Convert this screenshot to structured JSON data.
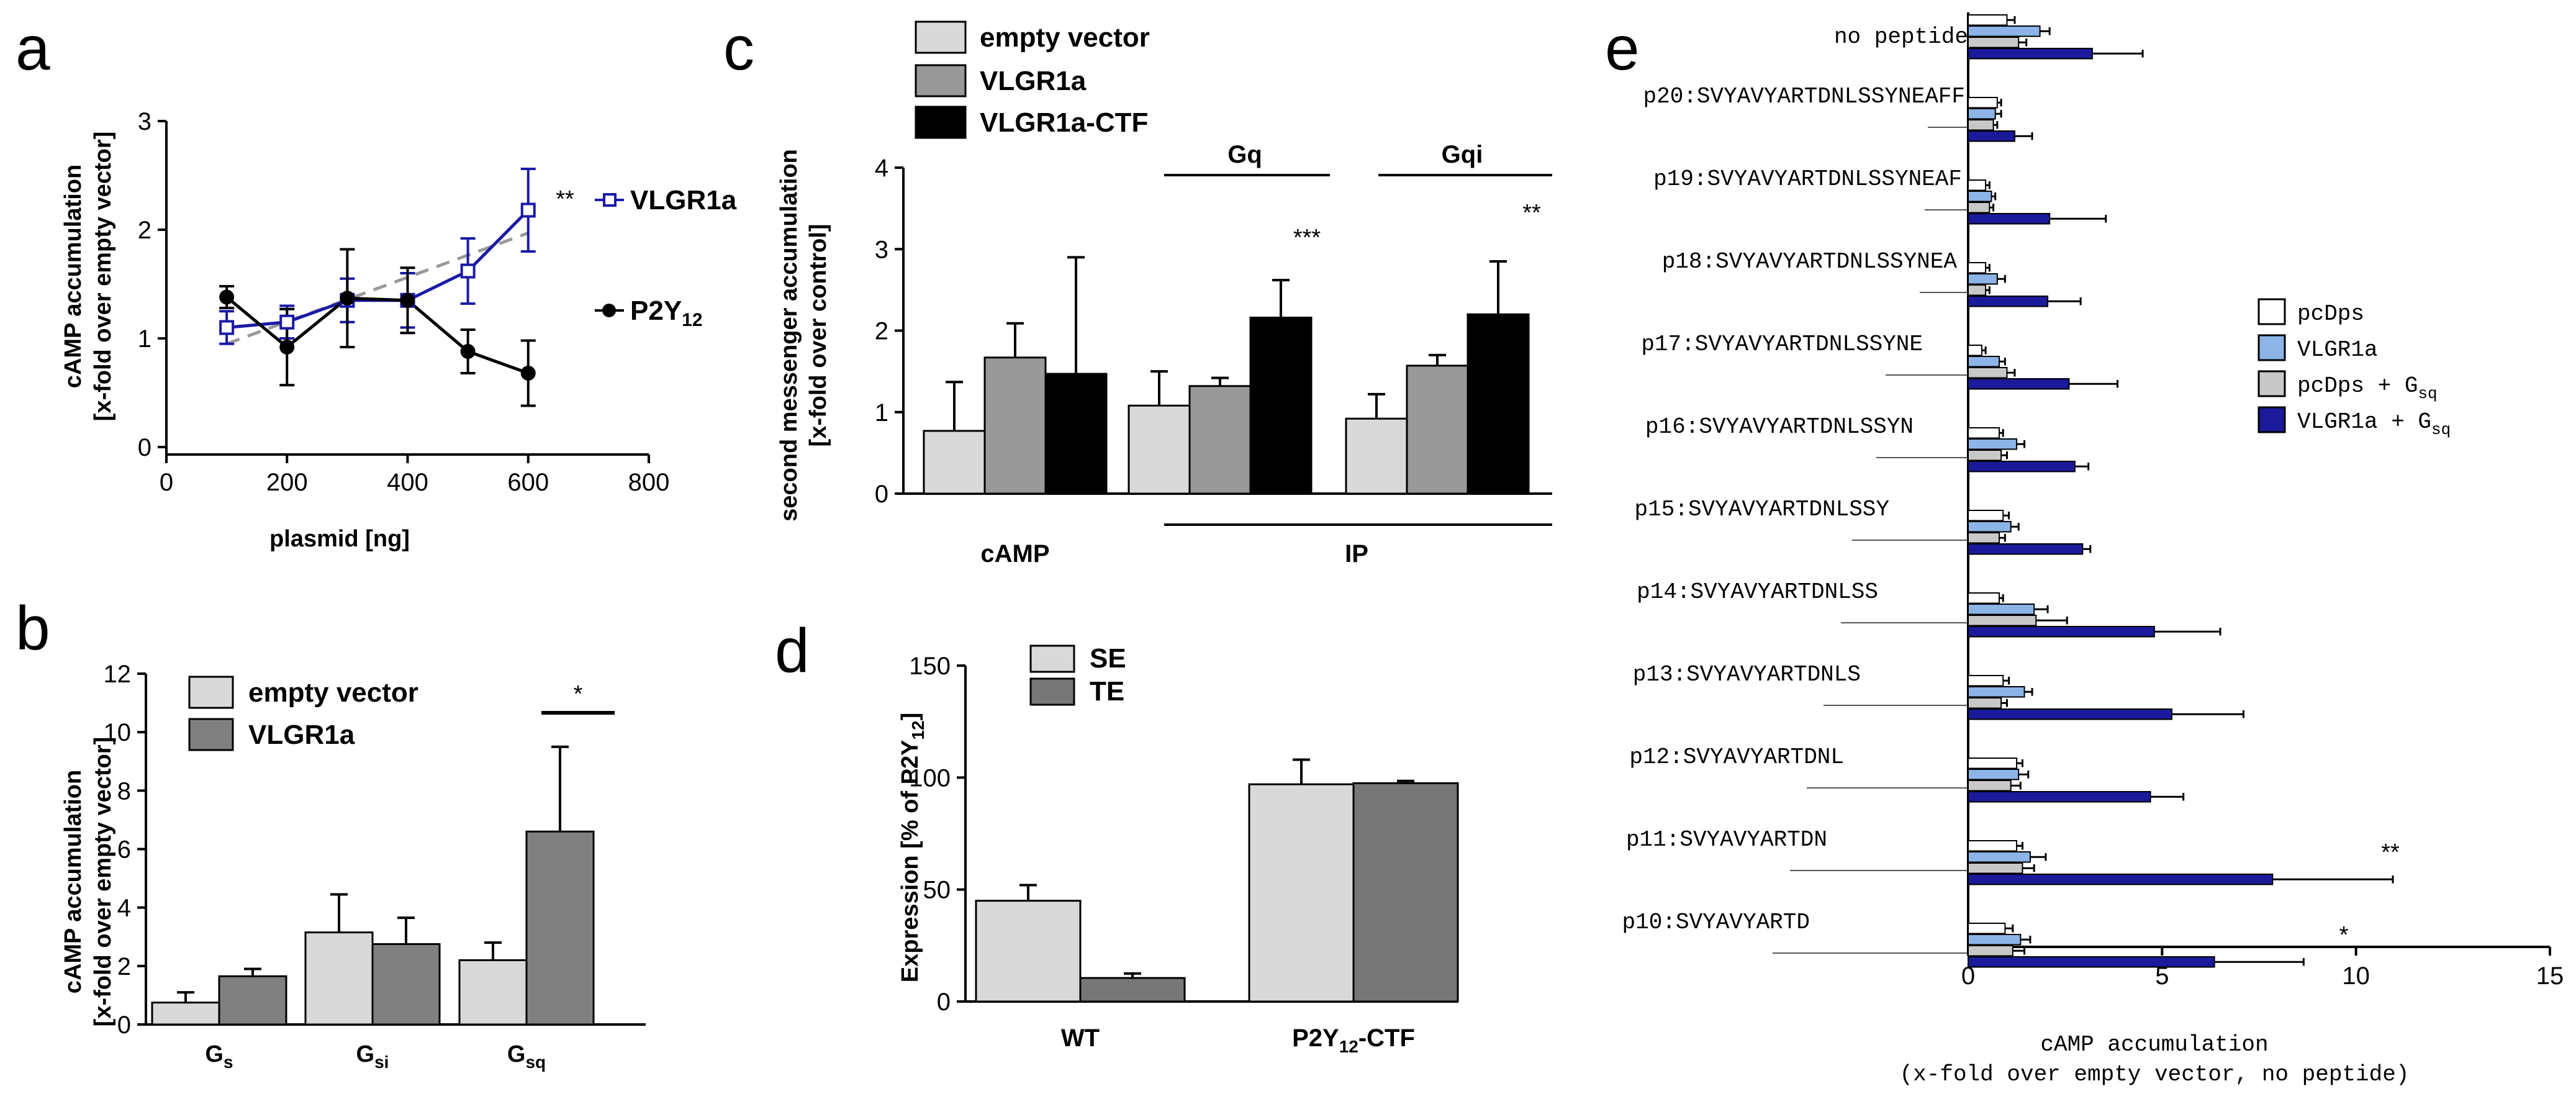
{
  "panel_letters": [
    "a",
    "b",
    "c",
    "d",
    "e"
  ],
  "chart_data": [
    {
      "panel": "a",
      "type": "line",
      "title": "",
      "xlabel": "plasmid [ng]",
      "ylabel": "cAMP accumulation",
      "ylabel2": "[x-fold over empty vector]",
      "xlim": [
        0,
        800
      ],
      "ylim": [
        0,
        3
      ],
      "xticks": [
        "0",
        "200",
        "400",
        "600",
        "800"
      ],
      "yticks": [
        "0",
        "1",
        "2",
        "3"
      ],
      "series": [
        {
          "name": "VLGR1a",
          "color": "#1a1aa6",
          "marker": "open-square",
          "x": [
            100,
            200,
            300,
            400,
            500,
            600
          ],
          "y": [
            1.1,
            1.15,
            1.35,
            1.35,
            1.62,
            2.18
          ],
          "err": [
            0.15,
            0.15,
            0.2,
            0.25,
            0.3,
            0.38
          ]
        },
        {
          "name": "P2Y12",
          "color": "#000000",
          "marker": "filled-circle",
          "x": [
            100,
            200,
            300,
            400,
            500,
            600
          ],
          "y": [
            1.38,
            0.92,
            1.37,
            1.35,
            0.88,
            0.68
          ],
          "err": [
            0.1,
            0.35,
            0.45,
            0.3,
            0.2,
            0.3
          ]
        }
      ],
      "trendline": {
        "x": [
          100,
          600
        ],
        "y": [
          0.95,
          1.97
        ],
        "color": "#999999",
        "style": "dashed"
      },
      "annotations": [
        "**"
      ]
    },
    {
      "panel": "b",
      "type": "bar",
      "xlabel": "",
      "ylabel": "cAMP accumulation",
      "ylabel2": "[x-fold over empty vector]",
      "ylim": [
        0,
        12
      ],
      "yticks": [
        "0",
        "2",
        "4",
        "6",
        "8",
        "10",
        "12"
      ],
      "categories": [
        "Gs",
        "Gsi",
        "Gsq"
      ],
      "category_subscripts": [
        "s",
        "si",
        "sq"
      ],
      "series": [
        {
          "name": "empty vector",
          "color": "#d9d9d9",
          "values": [
            0.75,
            3.15,
            2.2
          ],
          "err": [
            0.35,
            1.3,
            0.6
          ]
        },
        {
          "name": "VLGR1a",
          "color": "#808080",
          "values": [
            1.65,
            2.75,
            6.6
          ],
          "err": [
            0.25,
            0.9,
            2.9
          ]
        }
      ],
      "annotations": [
        "*"
      ]
    },
    {
      "panel": "c",
      "type": "bar",
      "ylabel": "second messenger accumulation",
      "ylabel2": "[x-fold over control]",
      "ylim": [
        0,
        4
      ],
      "yticks": [
        "0",
        "1",
        "2",
        "3",
        "4"
      ],
      "categories": [
        "cAMP",
        "IP Gq",
        "IP Gqi"
      ],
      "group_labels": {
        "camp": "cAMP",
        "ip": "IP",
        "gq": "Gq",
        "gqi": "Gqi"
      },
      "series": [
        {
          "name": "empty vector",
          "color": "#d9d9d9",
          "values": [
            0.77,
            1.08,
            0.92
          ],
          "err": [
            0.6,
            0.42,
            0.3
          ]
        },
        {
          "name": "VLGR1a",
          "color": "#999999",
          "values": [
            1.67,
            1.32,
            1.57
          ],
          "err": [
            0.42,
            0.1,
            0.13
          ]
        },
        {
          "name": "VLGR1a-CTF",
          "color": "#000000",
          "values": [
            1.47,
            2.16,
            2.2
          ],
          "err": [
            1.43,
            0.46,
            0.65
          ]
        }
      ],
      "annotations": [
        "***",
        "**"
      ]
    },
    {
      "panel": "d",
      "type": "bar",
      "ylabel": "Expression [% of P2Y12]",
      "ylim": [
        0,
        150
      ],
      "yticks": [
        "0",
        "50",
        "100",
        "150"
      ],
      "categories": [
        "WT",
        "P2Y12-CTF"
      ],
      "series": [
        {
          "name": "SE",
          "color": "#d9d9d9",
          "values": [
            45,
            97
          ],
          "err": [
            7,
            11
          ]
        },
        {
          "name": "TE",
          "color": "#777777",
          "values": [
            10.5,
            97.5
          ],
          "err": [
            2,
            1
          ]
        }
      ]
    },
    {
      "panel": "e",
      "type": "bar",
      "orientation": "horizontal",
      "xlabel": "cAMP accumulation",
      "xlabel2": "(x-fold over empty vector, no peptide)",
      "xlim": [
        0,
        15
      ],
      "xticks": [
        "0",
        "5",
        "10",
        "15"
      ],
      "categories": [
        "no peptide",
        "p20:SVYAVYARTDNLSSYNEAFF",
        "p19:SVYAVYARTDNLSSYNEAF",
        "p18:SVYAVYARTDNLSSYNEA",
        "p17:SVYAVYARTDNLSSYNE",
        "p16:SVYAVYARTDNLSSYN",
        "p15:SVYAVYARTDNLSSY",
        "p14:SVYAVYARTDNLSS",
        "p13:SVYAVYARTDNLS",
        "p12:SVYAVYARTDNL",
        "p11:SVYAVYARTDN",
        "p10:SVYAVYARTD"
      ],
      "series": [
        {
          "name": "pcDps",
          "color": "#ffffff",
          "values": [
            1.0,
            0.75,
            0.45,
            0.45,
            0.35,
            0.8,
            0.9,
            0.8,
            0.9,
            1.25,
            1.25,
            0.95
          ],
          "err": [
            0.2,
            0.1,
            0.1,
            0.1,
            0.1,
            0.1,
            0.15,
            0.1,
            0.15,
            0.15,
            0.15,
            0.2
          ]
        },
        {
          "name": "VLGR1a",
          "color": "#8cb4e6",
          "values": [
            1.85,
            0.7,
            0.6,
            0.75,
            0.8,
            1.25,
            1.1,
            1.7,
            1.45,
            1.3,
            1.6,
            1.35
          ],
          "err": [
            0.25,
            0.15,
            0.1,
            0.2,
            0.15,
            0.2,
            0.2,
            0.35,
            0.2,
            0.25,
            0.4,
            0.25
          ]
        },
        {
          "name": "pcDps + Gsq",
          "color": "#c8c8c8",
          "values": [
            1.3,
            0.65,
            0.55,
            0.45,
            1.0,
            0.85,
            0.8,
            1.75,
            0.85,
            1.1,
            1.4,
            1.15
          ],
          "err": [
            0.2,
            0.1,
            0.1,
            0.1,
            0.2,
            0.15,
            0.15,
            0.8,
            0.15,
            0.25,
            0.3,
            0.3
          ]
        },
        {
          "name": "VLGR1a + Gsq",
          "color": "#1a1a9a",
          "values": [
            3.2,
            1.2,
            2.1,
            2.05,
            2.6,
            2.75,
            2.95,
            4.8,
            5.25,
            4.7,
            7.85,
            6.35
          ],
          "err": [
            1.3,
            0.45,
            1.45,
            0.85,
            1.25,
            0.35,
            0.2,
            1.7,
            1.85,
            0.85,
            3.1,
            2.3
          ]
        }
      ],
      "legend_labels": [
        {
          "main": "pcDps",
          "sub": ""
        },
        {
          "main": "VLGR1a",
          "sub": ""
        },
        {
          "main": "pcDps + G",
          "sub": "sq"
        },
        {
          "main": "VLGR1a + G",
          "sub": "sq"
        }
      ],
      "annotations": [
        "**",
        "*"
      ]
    }
  ]
}
